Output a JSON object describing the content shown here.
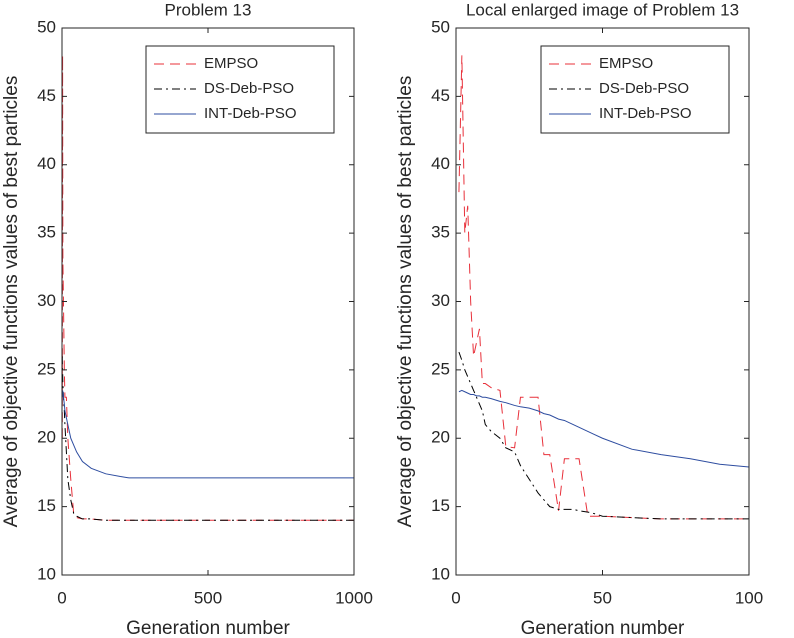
{
  "chart_data": [
    {
      "type": "line",
      "title": "Problem 13",
      "xlabel": "Generation number",
      "ylabel": "Average of objective functions values of best particles",
      "x": [
        1,
        2,
        3,
        5,
        8,
        10,
        15,
        20,
        30,
        40,
        50,
        70,
        100,
        150,
        200,
        230,
        300,
        500,
        700,
        1000
      ],
      "series": [
        {
          "name": "EMPSO",
          "color": "#e8303a",
          "dash": "dashed",
          "values": [
            20,
            48,
            33,
            30,
            25,
            23,
            23,
            20,
            17,
            14.5,
            14.2,
            14.1,
            14.1,
            14.0,
            14.0,
            14.0,
            14.0,
            14.0,
            14.0,
            14.0
          ]
        },
        {
          "name": "DS-Deb-PSO",
          "color": "#000000",
          "dash": "dashdot",
          "values": [
            26,
            25,
            24,
            23,
            22,
            21,
            19,
            17,
            15.5,
            14.5,
            14.3,
            14.1,
            14.1,
            14.0,
            14.0,
            14.0,
            14.0,
            14.0,
            14.0,
            14.0
          ]
        },
        {
          "name": "INT-Deb-PSO",
          "color": "#2e4da0",
          "dash": "solid",
          "values": [
            23,
            23.5,
            23.4,
            23,
            22.5,
            22,
            21.5,
            21,
            20,
            19.5,
            19,
            18.3,
            17.8,
            17.4,
            17.2,
            17.1,
            17.1,
            17.1,
            17.1,
            17.1
          ]
        }
      ],
      "xlim": [
        0,
        1000
      ],
      "xticks": [
        0,
        500,
        1000
      ],
      "ylim": [
        10,
        50
      ],
      "yticks": [
        10,
        15,
        20,
        25,
        30,
        35,
        40,
        45,
        50
      ],
      "legend": "upper right"
    },
    {
      "type": "line",
      "title": "Local enlarged image of Problem 13",
      "xlabel": "Generation number",
      "ylabel": "Average of objective functions values of best particles",
      "x": [
        1,
        2,
        3,
        4,
        5,
        6,
        7,
        8,
        9,
        10,
        12,
        15,
        17,
        20,
        22,
        25,
        28,
        30,
        32,
        35,
        37,
        40,
        42,
        45,
        47,
        50,
        60,
        70,
        80,
        90,
        100
      ],
      "series": [
        {
          "name": "EMPSO",
          "color": "#e8303a",
          "dash": "dashed",
          "values": [
            38,
            48,
            35,
            37,
            30,
            26,
            27,
            28,
            24,
            24,
            23.7,
            23.5,
            19.4,
            19.3,
            23,
            23,
            23,
            18.8,
            18.8,
            14.7,
            18.5,
            18.5,
            18.5,
            14.3,
            14.3,
            14.3,
            14.2,
            14.1,
            14.1,
            14.1,
            14.1
          ]
        },
        {
          "name": "DS-Deb-PSO",
          "color": "#000000",
          "dash": "dashdot",
          "values": [
            26.3,
            25.7,
            25,
            24.5,
            24,
            23.5,
            23,
            22.5,
            22,
            21,
            20.5,
            20,
            19.3,
            19,
            18,
            17,
            16,
            15.5,
            15,
            14.8,
            14.8,
            14.8,
            14.7,
            14.6,
            14.5,
            14.3,
            14.2,
            14.1,
            14.1,
            14.1,
            14.1
          ]
        },
        {
          "name": "INT-Deb-PSO",
          "color": "#2e4da0",
          "dash": "solid",
          "values": [
            23.4,
            23.5,
            23.4,
            23.3,
            23.2,
            23.2,
            23.1,
            23.1,
            23.0,
            23.0,
            22.9,
            22.7,
            22.6,
            22.4,
            22.3,
            22.2,
            22.0,
            21.8,
            21.7,
            21.4,
            21.3,
            21.0,
            20.8,
            20.5,
            20.3,
            20.0,
            19.2,
            18.8,
            18.5,
            18.1,
            17.9
          ]
        }
      ],
      "xlim": [
        0,
        100
      ],
      "xticks": [
        0,
        50,
        100
      ],
      "ylim": [
        10,
        50
      ],
      "yticks": [
        10,
        15,
        20,
        25,
        30,
        35,
        40,
        45,
        50
      ],
      "legend": "upper right"
    }
  ]
}
